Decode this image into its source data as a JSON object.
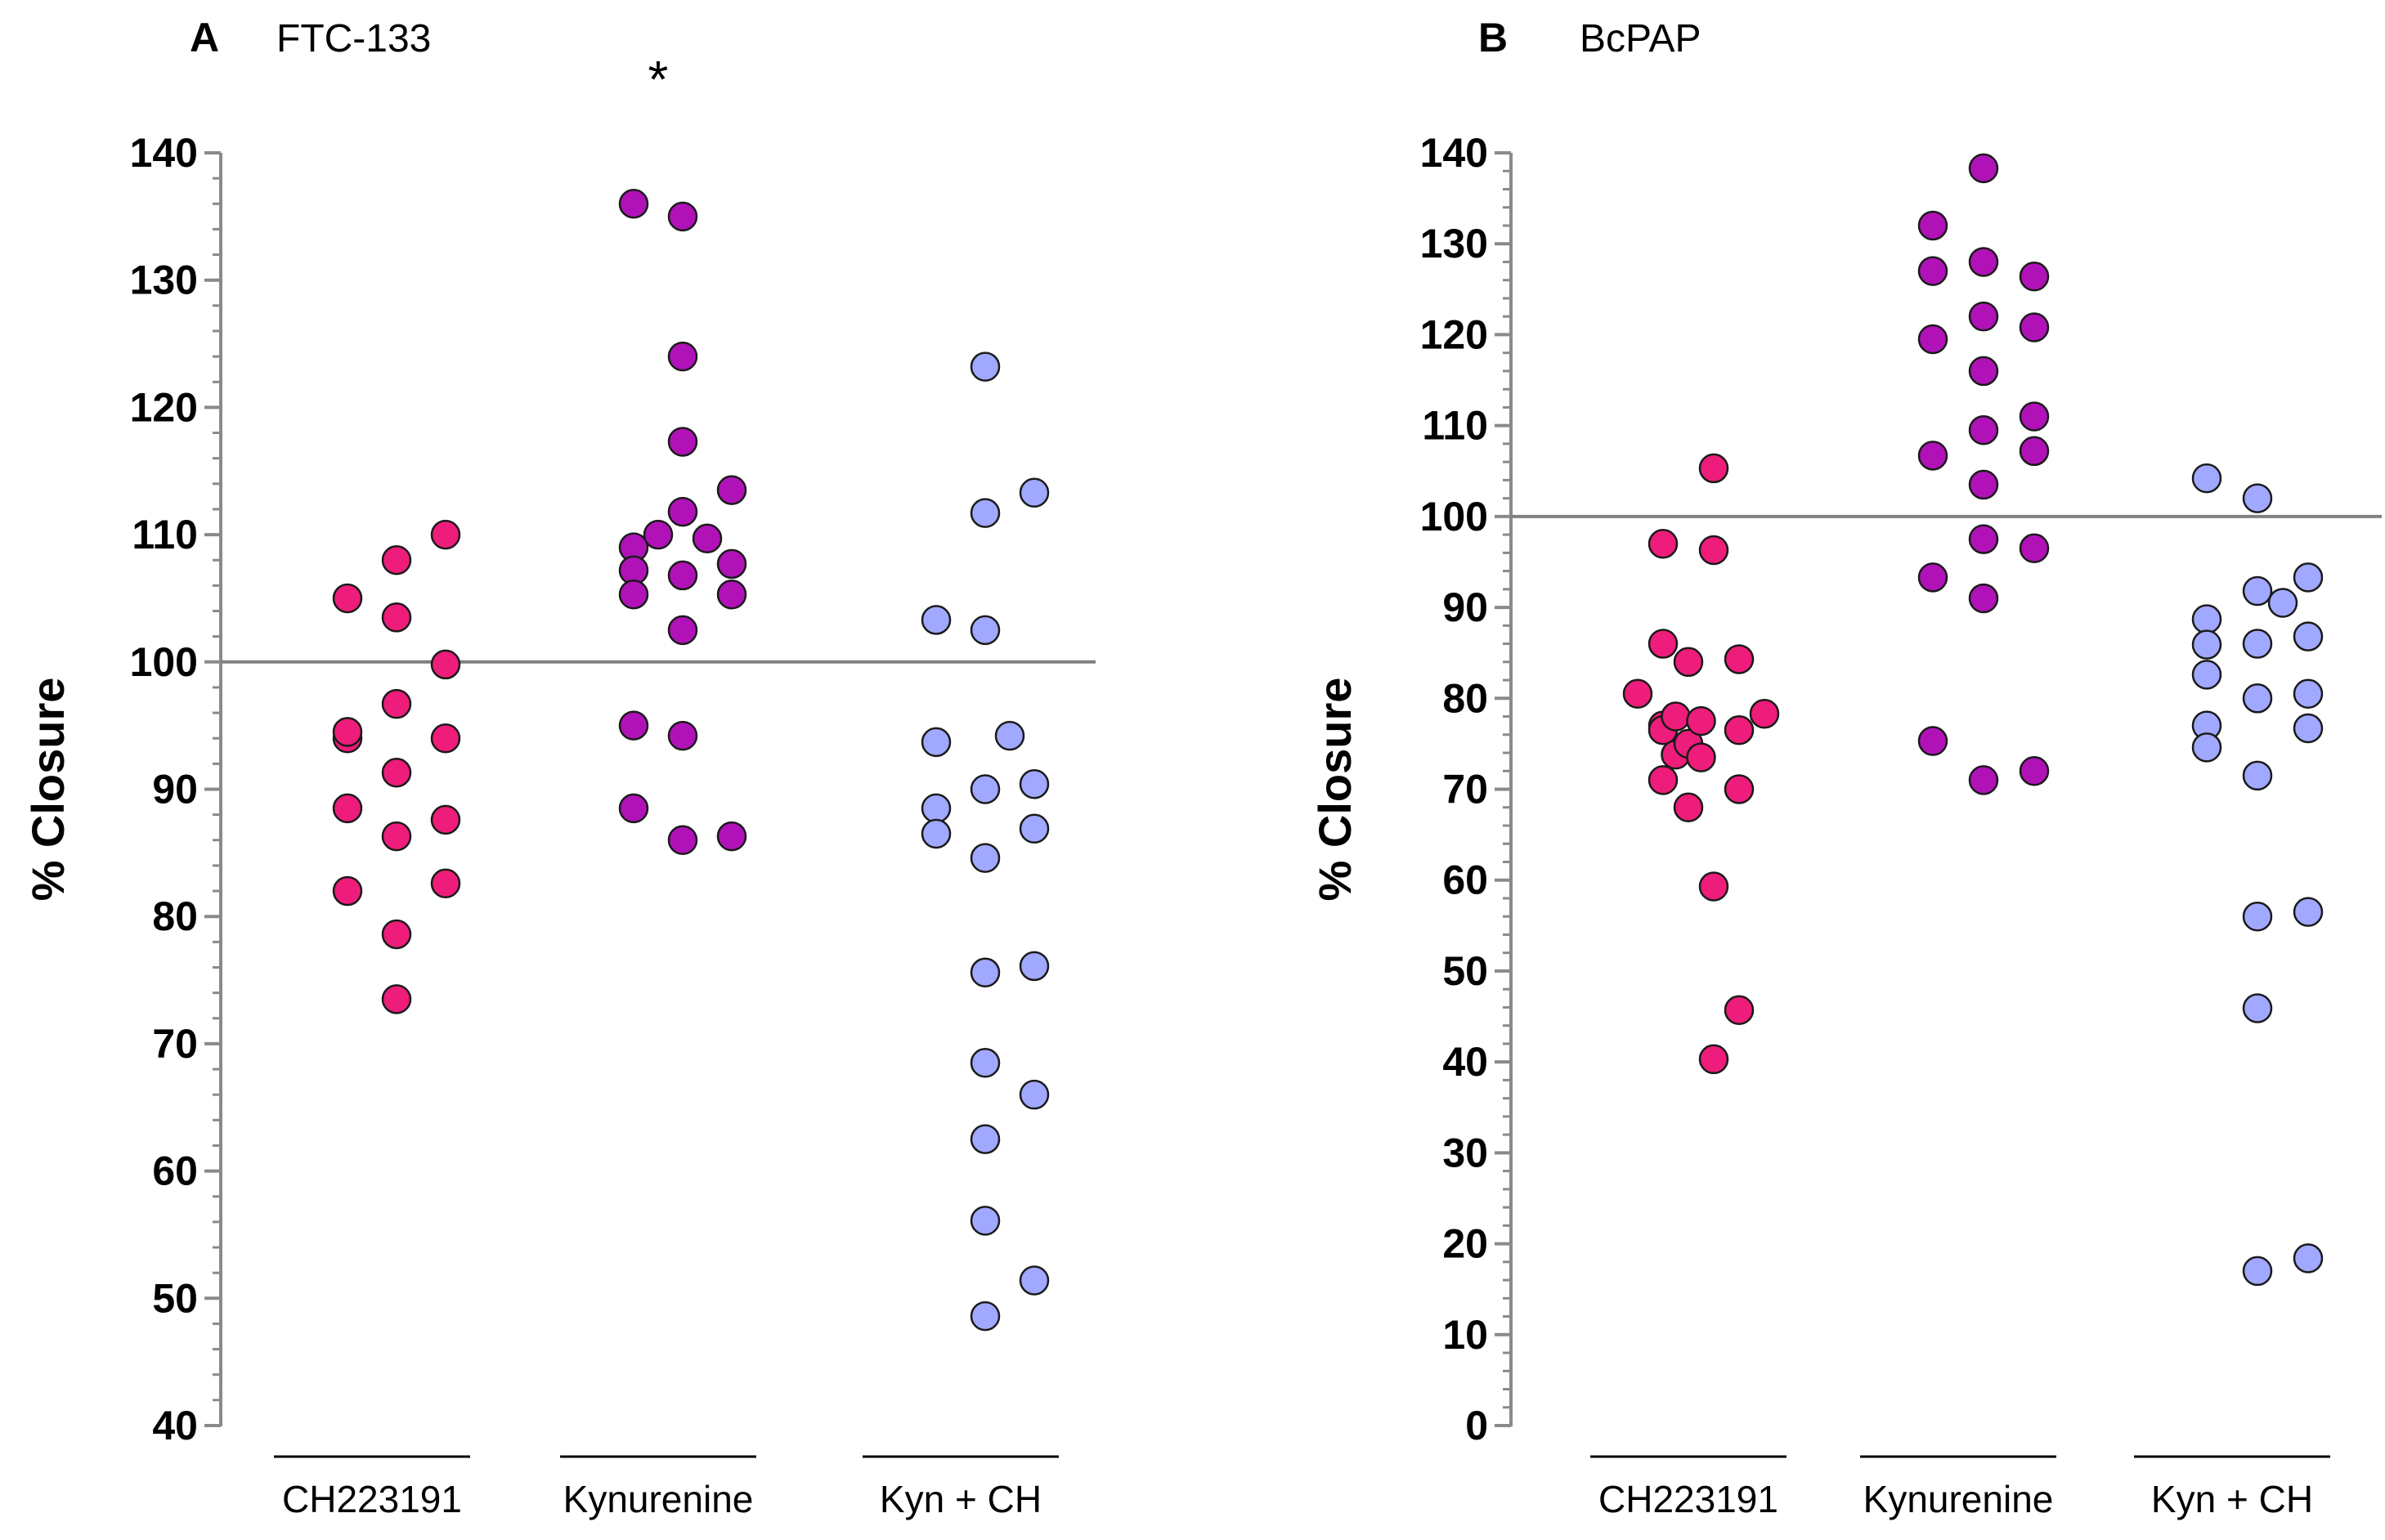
{
  "chart_data": [
    {
      "type": "scatter",
      "panel": "A",
      "title": "FTC-133",
      "ylabel": "% Closure",
      "xlabel": "",
      "ylim": [
        40,
        140
      ],
      "yticks": [
        40,
        50,
        60,
        70,
        80,
        90,
        100,
        110,
        120,
        130,
        140
      ],
      "reference_line": 100,
      "categories": [
        "CH223191",
        "Kynurenine",
        "Kyn + CH"
      ],
      "annotation": {
        "text": "*",
        "category": "Kynurenine"
      },
      "colors": {
        "CH223191": "#ee1c7a",
        "Kynurenine": "#b012b8",
        "Kyn + CH": "#a0a8ff"
      },
      "series": [
        {
          "name": "CH223191",
          "points": [
            [
              -0.5,
              105
            ],
            [
              0.5,
              108
            ],
            [
              -0.5,
              94
            ],
            [
              0.5,
              103.5
            ],
            [
              -0.5,
              94.5
            ],
            [
              0.5,
              96.7
            ],
            [
              -0.5,
              88.5
            ],
            [
              0.5,
              91.3
            ],
            [
              -0.5,
              82
            ],
            [
              0.5,
              86.3
            ],
            [
              0.5,
              78.6
            ],
            [
              0.5,
              73.5
            ],
            [
              1.5,
              110
            ],
            [
              1.5,
              99.8
            ],
            [
              1.5,
              94
            ],
            [
              1.5,
              87.6
            ],
            [
              1.5,
              82.6
            ]
          ]
        },
        {
          "name": "Kynurenine",
          "points": [
            [
              -0.5,
              136
            ],
            [
              -0.5,
              109
            ],
            [
              -0.5,
              107.2
            ],
            [
              -0.5,
              105.3
            ],
            [
              -0.5,
              95
            ],
            [
              -0.5,
              88.5
            ],
            [
              0.5,
              135
            ],
            [
              0.5,
              124
            ],
            [
              0.5,
              117.3
            ],
            [
              0.5,
              111.8
            ],
            [
              0.5,
              106.8
            ],
            [
              0.5,
              102.5
            ],
            [
              0.5,
              94.2
            ],
            [
              0.5,
              86
            ],
            [
              0,
              110
            ],
            [
              1,
              109.7
            ],
            [
              1.5,
              113.5
            ],
            [
              1.5,
              107.7
            ],
            [
              1.5,
              105.3
            ],
            [
              1.5,
              86.3
            ]
          ]
        },
        {
          "name": "Kyn + CH",
          "points": [
            [
              -0.5,
              103.3
            ],
            [
              -0.5,
              93.7
            ],
            [
              -0.5,
              88.5
            ],
            [
              -0.5,
              86.5
            ],
            [
              0.5,
              123.2
            ],
            [
              0.5,
              111.7
            ],
            [
              0.5,
              102.5
            ],
            [
              0.5,
              90
            ],
            [
              0.5,
              84.6
            ],
            [
              0.5,
              75.6
            ],
            [
              0.5,
              68.5
            ],
            [
              0.5,
              62.5
            ],
            [
              0.5,
              56.1
            ],
            [
              0.5,
              48.6
            ],
            [
              1,
              94.2
            ],
            [
              1.5,
              113.3
            ],
            [
              1.5,
              90.4
            ],
            [
              1.5,
              86.9
            ],
            [
              1.5,
              76.1
            ],
            [
              1.5,
              66
            ],
            [
              1.5,
              51.4
            ]
          ]
        }
      ]
    },
    {
      "type": "scatter",
      "panel": "B",
      "title": "BcPAP",
      "ylabel": "% Closure",
      "xlabel": "",
      "ylim": [
        0,
        140
      ],
      "yticks": [
        0,
        10,
        20,
        30,
        40,
        50,
        60,
        70,
        80,
        90,
        100,
        110,
        120,
        130,
        140
      ],
      "reference_line": 100,
      "categories": [
        "CH223191",
        "Kynurenine",
        "Kyn + CH"
      ],
      "colors": {
        "CH223191": "#ee1c7a",
        "Kynurenine": "#b012b8",
        "Kyn + CH": "#a0a8ff"
      },
      "series": [
        {
          "name": "CH223191",
          "points": [
            [
              -0.5,
              97
            ],
            [
              -0.5,
              86
            ],
            [
              -0.5,
              77
            ],
            [
              -0.5,
              76.5
            ],
            [
              -0.5,
              71
            ],
            [
              -1,
              80.5
            ],
            [
              -0.25,
              78
            ],
            [
              -0.25,
              73.8
            ],
            [
              0,
              75
            ],
            [
              0,
              68
            ],
            [
              0,
              84
            ],
            [
              0.25,
              77.5
            ],
            [
              0.25,
              73.5
            ],
            [
              0.5,
              105.3
            ],
            [
              0.5,
              96.3
            ],
            [
              0.5,
              59.3
            ],
            [
              0.5,
              40.3
            ],
            [
              1,
              84.3
            ],
            [
              1,
              76.5
            ],
            [
              1,
              70
            ],
            [
              1,
              45.7
            ],
            [
              1.5,
              78.3
            ]
          ]
        },
        {
          "name": "Kynurenine",
          "points": [
            [
              -0.5,
              132
            ],
            [
              -0.5,
              127
            ],
            [
              -0.5,
              119.5
            ],
            [
              -0.5,
              106.7
            ],
            [
              -0.5,
              93.3
            ],
            [
              -0.5,
              75.3
            ],
            [
              0.5,
              138.3
            ],
            [
              0.5,
              128
            ],
            [
              0.5,
              122
            ],
            [
              0.5,
              116
            ],
            [
              0.5,
              109.5
            ],
            [
              0.5,
              103.5
            ],
            [
              0.5,
              97.5
            ],
            [
              0.5,
              91
            ],
            [
              0.5,
              71
            ],
            [
              1.5,
              126.4
            ],
            [
              1.5,
              120.8
            ],
            [
              1.5,
              111
            ],
            [
              1.5,
              107.2
            ],
            [
              1.5,
              96.5
            ],
            [
              1.5,
              72
            ]
          ]
        },
        {
          "name": "Kyn + CH",
          "points": [
            [
              -0.5,
              104.2
            ],
            [
              -0.5,
              88.7
            ],
            [
              -0.5,
              85.9
            ],
            [
              -0.5,
              82.6
            ],
            [
              -0.5,
              77
            ],
            [
              -0.5,
              74.6
            ],
            [
              0.5,
              102
            ],
            [
              0.5,
              91.8
            ],
            [
              0.5,
              86
            ],
            [
              0.5,
              80
            ],
            [
              0.5,
              71.5
            ],
            [
              0.5,
              56
            ],
            [
              0.5,
              45.9
            ],
            [
              0.5,
              17
            ],
            [
              1,
              90.5
            ],
            [
              1.5,
              93.3
            ],
            [
              1.5,
              86.8
            ],
            [
              1.5,
              80.5
            ],
            [
              1.5,
              76.7
            ],
            [
              1.5,
              56.5
            ],
            [
              1.5,
              18.4
            ]
          ]
        }
      ]
    }
  ]
}
